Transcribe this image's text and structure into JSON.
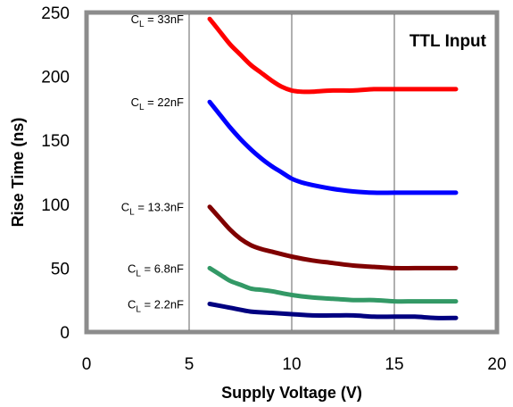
{
  "chart_data": {
    "type": "line",
    "title": "",
    "annotation": "TTL Input",
    "xlabel": "Supply Voltage (V)",
    "ylabel": "Rise Time (ns)",
    "xlim": [
      0,
      20
    ],
    "ylim": [
      0,
      250
    ],
    "xticks": [
      "0",
      "5",
      "10",
      "15",
      "20"
    ],
    "yticks": [
      "0",
      "50",
      "100",
      "150",
      "200",
      "250"
    ],
    "grid": "vertical lines at x = 5, 10, 15",
    "legend": "inline labels at left of each curve",
    "series": [
      {
        "name": "CL = 33nF",
        "label_main": "C",
        "label_sub": "L",
        "label_rest": " = 33nF",
        "color": "#ff0000",
        "x": [
          6,
          6.5,
          7,
          7.5,
          8,
          8.5,
          9,
          9.5,
          10,
          10.5,
          11,
          12,
          13,
          14,
          15,
          16,
          17,
          18
        ],
        "y": [
          245,
          235,
          225,
          217,
          209,
          203,
          197,
          192,
          189,
          188,
          188,
          189,
          189,
          190,
          190,
          190,
          190,
          190
        ]
      },
      {
        "name": "CL = 22nF",
        "label_main": "C",
        "label_sub": "L",
        "label_rest": " = 22nF",
        "color": "#0000ff",
        "x": [
          6,
          6.5,
          7,
          7.5,
          8,
          8.5,
          9,
          9.5,
          10,
          10.5,
          11,
          12,
          13,
          14,
          15,
          16,
          17,
          18
        ],
        "y": [
          180,
          170,
          160,
          151,
          143,
          136,
          130,
          125,
          120,
          117,
          115,
          112,
          110,
          109,
          109,
          109,
          109,
          109
        ]
      },
      {
        "name": "CL = 13.3nF",
        "label_main": "C",
        "label_sub": "L",
        "label_rest": " = 13.3nF",
        "color": "#800000",
        "x": [
          6,
          6.5,
          7,
          7.5,
          8,
          8.5,
          9,
          10,
          11,
          12,
          13,
          14,
          15,
          16,
          17,
          18
        ],
        "y": [
          98,
          89,
          80,
          73,
          68,
          65,
          63,
          59,
          56,
          54,
          52,
          51,
          50,
          50,
          50,
          50
        ]
      },
      {
        "name": "CL = 6.8nF",
        "label_main": "C",
        "label_sub": "L",
        "label_rest": " = 6.8nF",
        "color": "#339966",
        "x": [
          6,
          6.5,
          7,
          7.5,
          8,
          8.5,
          9,
          10,
          11,
          12,
          13,
          14,
          15,
          16,
          17,
          18
        ],
        "y": [
          50,
          45,
          40,
          37,
          34,
          33,
          32,
          29,
          27,
          26,
          25,
          25,
          24,
          24,
          24,
          24
        ]
      },
      {
        "name": "CL = 2.2nF",
        "label_main": "C",
        "label_sub": "L",
        "label_rest": " = 2.2nF",
        "color": "#000080",
        "x": [
          6,
          7,
          8,
          9,
          10,
          11,
          12,
          13,
          14,
          15,
          16,
          17,
          18
        ],
        "y": [
          22,
          19,
          16,
          15,
          14,
          13,
          13,
          13,
          12,
          12,
          12,
          11,
          11
        ]
      }
    ]
  }
}
